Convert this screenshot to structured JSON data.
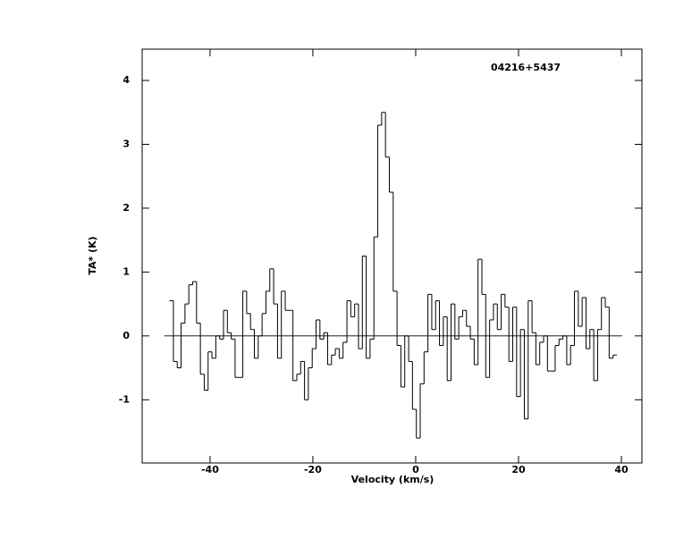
{
  "chart_data": {
    "type": "step",
    "title": "04216+5437",
    "xlabel": "Velocity (km/s)",
    "ylabel": "TA* (K)",
    "xlim": [
      -53.2,
      44.0
    ],
    "ylim": [
      -1.99,
      4.49
    ],
    "xticks": [
      -40,
      -20,
      0,
      20,
      40
    ],
    "yticks": [
      -1,
      0,
      1,
      2,
      3,
      4
    ],
    "baseline": 0,
    "color": "#000000",
    "x": [
      -47.5,
      -46.75,
      -46,
      -45.25,
      -44.5,
      -43.75,
      -43,
      -42.25,
      -41.5,
      -40.75,
      -40,
      -39.25,
      -38.5,
      -37.75,
      -37,
      -36.25,
      -35.5,
      -34.75,
      -34,
      -33.25,
      -32.5,
      -31.75,
      -31,
      -30.25,
      -29.5,
      -28.75,
      -28,
      -27.25,
      -26.5,
      -25.75,
      -25,
      -24.25,
      -23.5,
      -22.75,
      -22,
      -21.25,
      -20.5,
      -19.75,
      -19,
      -18.25,
      -17.5,
      -16.75,
      -16,
      -15.25,
      -14.5,
      -13.75,
      -13,
      -12.25,
      -11.5,
      -10.75,
      -10,
      -9.25,
      -8.5,
      -7.75,
      -7,
      -6.25,
      -5.5,
      -4.75,
      -4,
      -3.25,
      -2.5,
      -1.75,
      -1,
      -0.25,
      0.5,
      1.25,
      2,
      2.75,
      3.5,
      4.25,
      5,
      5.75,
      6.5,
      7.25,
      8,
      8.75,
      9.5,
      10.25,
      11,
      11.75,
      12.5,
      13.25,
      14,
      14.75,
      15.5,
      16.25,
      17,
      17.75,
      18.5,
      19.25,
      20,
      20.75,
      21.5,
      22.25,
      23,
      23.75,
      24.5,
      25.25,
      26,
      26.75,
      27.5,
      28.25,
      29,
      29.75,
      30.5,
      31.25,
      32,
      32.75,
      33.5,
      34.25,
      35,
      35.75,
      36.5,
      37.25,
      38,
      38.75
    ],
    "values": [
      0.55,
      -0.4,
      -0.5,
      0.2,
      0.5,
      0.8,
      0.85,
      0.2,
      -0.6,
      -0.85,
      -0.25,
      -0.35,
      0.0,
      -0.05,
      0.4,
      0.05,
      -0.05,
      -0.65,
      -0.65,
      0.7,
      0.35,
      0.1,
      -0.35,
      0.0,
      0.35,
      0.7,
      1.05,
      0.5,
      -0.35,
      0.7,
      0.4,
      0.4,
      -0.7,
      -0.6,
      -0.4,
      -1.0,
      -0.5,
      -0.2,
      0.25,
      -0.05,
      0.05,
      -0.45,
      -0.3,
      -0.2,
      -0.35,
      -0.1,
      0.55,
      0.3,
      0.5,
      -0.2,
      1.25,
      -0.35,
      -0.05,
      1.55,
      3.3,
      3.5,
      2.8,
      2.25,
      0.7,
      -0.15,
      -0.8,
      0.0,
      -0.4,
      -1.15,
      -1.6,
      -0.75,
      -0.25,
      0.65,
      0.1,
      0.55,
      -0.15,
      0.3,
      -0.7,
      0.5,
      -0.05,
      0.3,
      0.4,
      0.15,
      -0.05,
      -0.45,
      1.2,
      0.65,
      -0.65,
      0.25,
      0.5,
      0.1,
      0.65,
      0.45,
      -0.4,
      0.45,
      -0.95,
      0.1,
      -1.3,
      0.55,
      0.05,
      -0.45,
      -0.1,
      0.0,
      -0.55,
      -0.55,
      -0.15,
      -0.05,
      0.0,
      -0.45,
      -0.15,
      0.7,
      0.15,
      0.6,
      -0.2,
      0.1,
      -0.7,
      0.1,
      0.6,
      0.45,
      -0.35,
      -0.3
    ]
  }
}
